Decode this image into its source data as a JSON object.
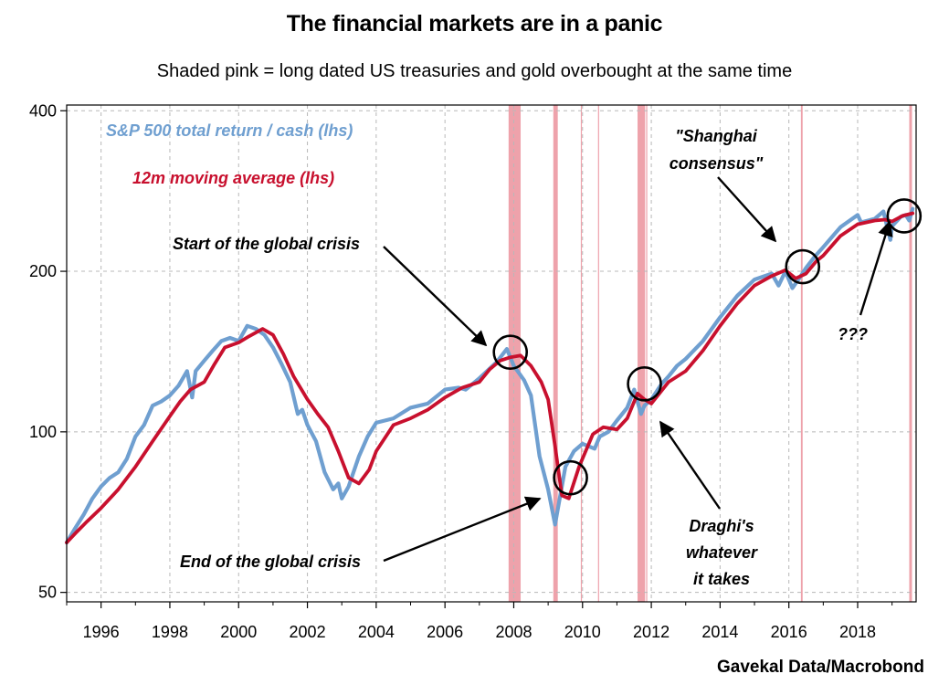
{
  "title": "The financial markets are in a panic",
  "subtitle": "Shaded pink = long dated US treasuries and gold overbought at the same time",
  "source": "Gavekal Data/Macrobond",
  "colors": {
    "spx": "#6f9fd0",
    "ma": "#c8102e",
    "shade": "#e8838f",
    "grid": "#b8b8b8"
  },
  "chart_data": {
    "type": "line",
    "yscale": "log",
    "ylim": [
      48,
      410
    ],
    "xlim": [
      1995.0,
      2019.7
    ],
    "yticks": [
      {
        "v": 50,
        "label": "50"
      },
      {
        "v": 100,
        "label": "100"
      },
      {
        "v": 200,
        "label": "200"
      },
      {
        "v": 400,
        "label": "400"
      }
    ],
    "xticks": [
      {
        "v": 1996,
        "label": "1996"
      },
      {
        "v": 1998,
        "label": "1998"
      },
      {
        "v": 2000,
        "label": "2000"
      },
      {
        "v": 2002,
        "label": "2002"
      },
      {
        "v": 2004,
        "label": "2004"
      },
      {
        "v": 2006,
        "label": "2006"
      },
      {
        "v": 2008,
        "label": "2008"
      },
      {
        "v": 2010,
        "label": "2010"
      },
      {
        "v": 2012,
        "label": "2012"
      },
      {
        "v": 2014,
        "label": "2014"
      },
      {
        "v": 2016,
        "label": "2016"
      },
      {
        "v": 2018,
        "label": "2018"
      }
    ],
    "legend": [
      {
        "text": "S&P 500 total return / cash (lhs)",
        "color": "#6f9fd0"
      },
      {
        "text": "12m moving average (lhs)",
        "color": "#c8102e"
      }
    ],
    "shaded_periods": [
      [
        2007.85,
        2008.2
      ],
      [
        2009.15,
        2009.28
      ],
      [
        2009.95,
        2009.98
      ],
      [
        2010.45,
        2010.48
      ],
      [
        2011.6,
        2011.82
      ],
      [
        2011.85,
        2011.88
      ],
      [
        2016.35,
        2016.4
      ],
      [
        2019.5,
        2019.58
      ]
    ],
    "series": [
      {
        "name": "S&P 500 total return / cash (lhs)",
        "x": [
          1995.0,
          1995.25,
          1995.5,
          1995.75,
          1996.0,
          1996.25,
          1996.5,
          1996.75,
          1997.0,
          1997.25,
          1997.5,
          1997.75,
          1998.0,
          1998.25,
          1998.5,
          1998.65,
          1998.75,
          1999.0,
          1999.25,
          1999.5,
          1999.75,
          2000.0,
          2000.25,
          2000.5,
          2000.75,
          2001.0,
          2001.25,
          2001.5,
          2001.72,
          2001.85,
          2002.0,
          2002.25,
          2002.5,
          2002.75,
          2002.9,
          2003.0,
          2003.2,
          2003.5,
          2003.75,
          2004.0,
          2004.5,
          2005.0,
          2005.5,
          2006.0,
          2006.4,
          2006.6,
          2007.0,
          2007.5,
          2007.8,
          2008.0,
          2008.3,
          2008.5,
          2008.75,
          2009.0,
          2009.2,
          2009.5,
          2009.75,
          2010.0,
          2010.35,
          2010.5,
          2010.75,
          2011.0,
          2011.3,
          2011.5,
          2011.7,
          2011.8,
          2012.0,
          2012.3,
          2012.5,
          2012.75,
          2013.0,
          2013.5,
          2014.0,
          2014.5,
          2015.0,
          2015.5,
          2015.7,
          2015.9,
          2016.1,
          2016.3,
          2016.5,
          2016.75,
          2017.0,
          2017.5,
          2018.0,
          2018.1,
          2018.5,
          2018.75,
          2018.95,
          2019.0,
          2019.25,
          2019.4,
          2019.5,
          2019.6
        ],
        "y": [
          62,
          66,
          70,
          75,
          79,
          82,
          84,
          89,
          98,
          103,
          112,
          114,
          117,
          122,
          130,
          116,
          130,
          136,
          142,
          148,
          150,
          148,
          158,
          156,
          152,
          144,
          134,
          124,
          108,
          110,
          103,
          96,
          84,
          78,
          80,
          75,
          79,
          90,
          98,
          104,
          106,
          111,
          113,
          120,
          121,
          120,
          126,
          135,
          143,
          133,
          125,
          117,
          90,
          78,
          67,
          86,
          92,
          95,
          93,
          98,
          100,
          105,
          111,
          120,
          108,
          112,
          115,
          123,
          127,
          133,
          137,
          148,
          164,
          180,
          193,
          198,
          188,
          200,
          186,
          194,
          203,
          213,
          222,
          242,
          255,
          247,
          251,
          259,
          229,
          243,
          253,
          255,
          249,
          262
        ]
      },
      {
        "name": "12m moving average (lhs)",
        "x": [
          1995.0,
          1995.3,
          1995.6,
          1996.0,
          1996.5,
          1997.0,
          1997.5,
          1998.0,
          1998.3,
          1998.6,
          1998.8,
          1999.0,
          1999.3,
          1999.6,
          2000.0,
          2000.3,
          2000.7,
          2001.0,
          2001.3,
          2001.6,
          2002.0,
          2002.3,
          2002.6,
          2002.9,
          2003.2,
          2003.5,
          2003.8,
          2004.0,
          2004.5,
          2005.0,
          2005.5,
          2006.0,
          2006.5,
          2007.0,
          2007.3,
          2007.6,
          2007.9,
          2008.2,
          2008.5,
          2008.8,
          2009.0,
          2009.2,
          2009.4,
          2009.6,
          2009.9,
          2010.3,
          2010.6,
          2011.0,
          2011.3,
          2011.6,
          2011.8,
          2012.0,
          2012.5,
          2013.0,
          2013.5,
          2014.0,
          2014.5,
          2015.0,
          2015.5,
          2015.9,
          2016.2,
          2016.5,
          2016.8,
          2017.0,
          2017.5,
          2018.0,
          2018.5,
          2018.8,
          2019.0,
          2019.3,
          2019.6
        ],
        "y": [
          62,
          65,
          68,
          72,
          78,
          86,
          96,
          107,
          114,
          120,
          122,
          124,
          134,
          144,
          147,
          151,
          156,
          152,
          140,
          127,
          115,
          108,
          102,
          92,
          82,
          80,
          85,
          92,
          103,
          106,
          110,
          116,
          121,
          124,
          131,
          136,
          138,
          139,
          133,
          124,
          115,
          94,
          76,
          75,
          86,
          99,
          102,
          101,
          106,
          118,
          115,
          113,
          124,
          130,
          142,
          158,
          174,
          188,
          196,
          201,
          194,
          198,
          209,
          214,
          233,
          245,
          249,
          250,
          248,
          254,
          257
        ]
      }
    ],
    "annotations": [
      {
        "id": "start",
        "lines": [
          "Start of the global crisis"
        ]
      },
      {
        "id": "end",
        "lines": [
          "End of the global crisis"
        ]
      },
      {
        "id": "shanghai",
        "lines": [
          "\"Shanghai",
          "consensus\""
        ]
      },
      {
        "id": "draghi",
        "lines": [
          "Draghi's",
          "whatever",
          "it takes"
        ]
      },
      {
        "id": "qqq",
        "lines": [
          "???"
        ]
      }
    ]
  }
}
